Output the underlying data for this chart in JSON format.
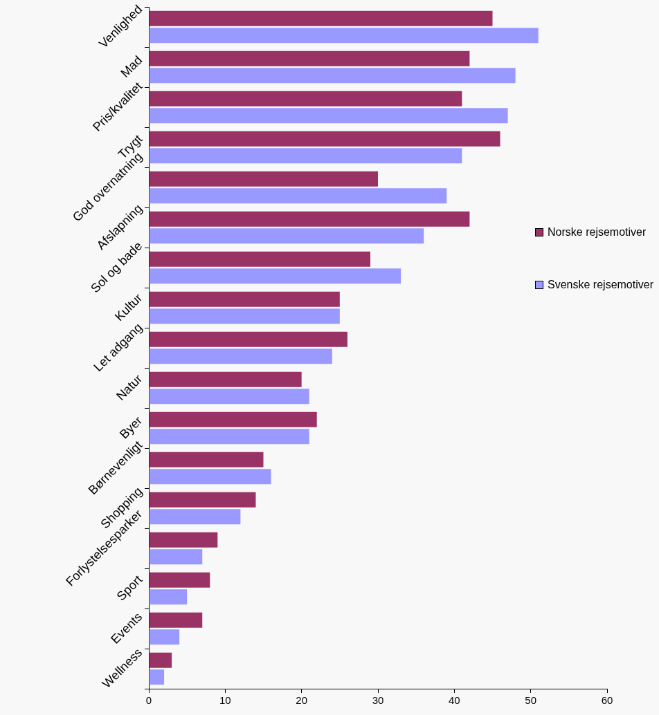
{
  "chart_data": {
    "type": "bar",
    "orientation": "horizontal",
    "categories": [
      "Venlighed",
      "Mad",
      "Pris/kvalitet",
      "Trygt",
      "God overnatning",
      "Afslapning",
      "Sol og bade",
      "Kultur",
      "Let adgang",
      "Natur",
      "Byer",
      "Børnevenligt",
      "Shopping",
      "Forlystelsesparker",
      "Sport",
      "Events",
      "Wellness"
    ],
    "series": [
      {
        "name": "Norske rejsemotiver",
        "color": "#993366",
        "values": [
          45,
          42,
          41,
          46,
          30,
          42,
          29,
          25,
          26,
          20,
          22,
          15,
          14,
          9,
          8,
          7,
          3
        ]
      },
      {
        "name": "Svenske rejsemotiver",
        "color": "#9999ff",
        "values": [
          51,
          48,
          47,
          41,
          39,
          36,
          33,
          25,
          24,
          21,
          21,
          16,
          12,
          7,
          5,
          4,
          2
        ]
      }
    ],
    "xlim": [
      0,
      60
    ],
    "xticks": [
      0,
      10,
      20,
      30,
      40,
      50,
      60
    ],
    "grid": false,
    "legend": "right"
  }
}
